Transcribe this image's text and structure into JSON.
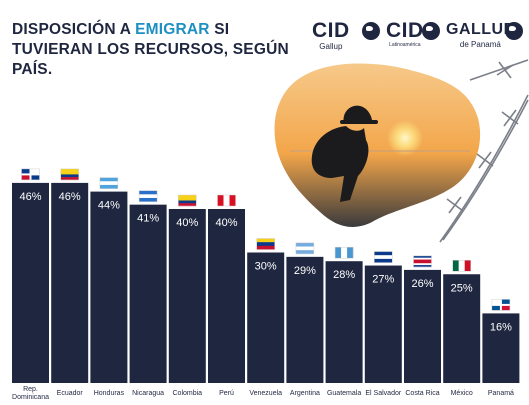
{
  "title": {
    "part1": "DISPOSICIÓN A ",
    "highlight": "EMIGRAR",
    "part2": " SI TUVIERAN LOS RECURSOS, SEGÚN PAÍS."
  },
  "logos": {
    "cid_gallup_big": "CID",
    "cid_gallup_small": "Gallup",
    "cid_latino_big": "CID",
    "cid_latino_small": "Latinoamérica",
    "gallup_big": "GALLUP",
    "gallup_small": "de Panamá"
  },
  "colors": {
    "bar": "#1f2640",
    "title": "#1f2640",
    "highlight": "#1e8fc2"
  },
  "chart_data": {
    "type": "bar",
    "categories": [
      "Rep. Dominicana",
      "Ecuador",
      "Honduras",
      "Nicaragua",
      "Colombia",
      "Perú",
      "Venezuela",
      "Argentina",
      "Guatemala",
      "El Salvador",
      "Costa Rica",
      "México",
      "Panamá"
    ],
    "values": [
      46,
      46,
      44,
      41,
      40,
      40,
      30,
      29,
      28,
      27,
      26,
      25,
      16
    ],
    "value_labels": [
      "46%",
      "46%",
      "44%",
      "41%",
      "40%",
      "40%",
      "30%",
      "29%",
      "28%",
      "27%",
      "26%",
      "25%",
      "16%"
    ],
    "flags": [
      "dominican-republic-flag",
      "ecuador-flag",
      "honduras-flag",
      "nicaragua-flag",
      "colombia-flag",
      "peru-flag",
      "venezuela-flag",
      "argentina-flag",
      "guatemala-flag",
      "el-salvador-flag",
      "costa-rica-flag",
      "mexico-flag",
      "panama-flag"
    ],
    "ylim": [
      0,
      46
    ],
    "grid": false,
    "legend": "none"
  }
}
